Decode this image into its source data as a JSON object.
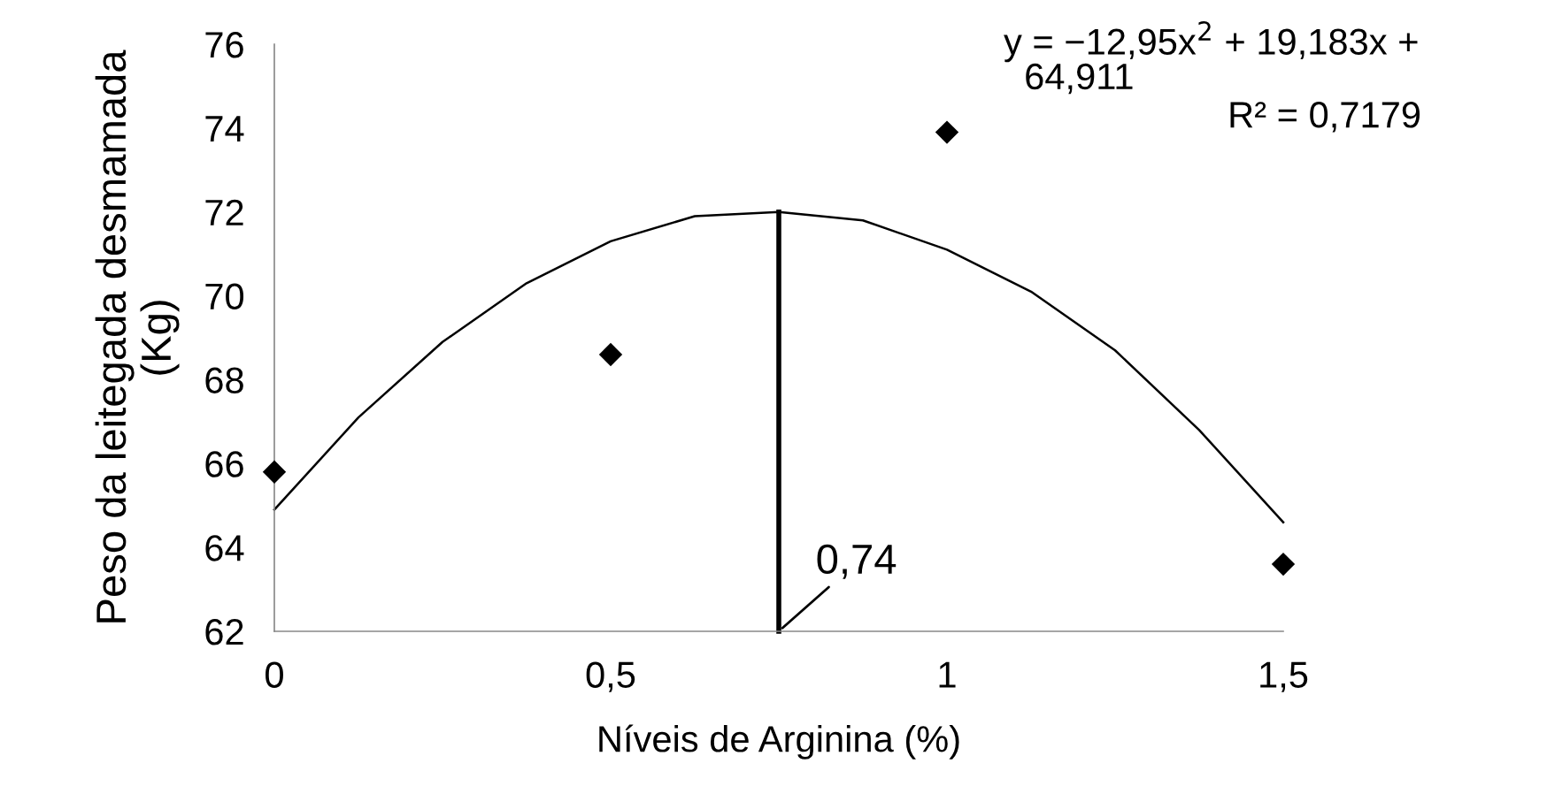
{
  "chart_data": {
    "type": "scatter",
    "xlabel": "Níveis de Arginina (%)",
    "ylabel": "Peso da leitegada desmamada\n(Kg)",
    "x": [
      0,
      0.5,
      1,
      1.5
    ],
    "series": [
      {
        "color": "#000000",
        "marker": "diamond",
        "values": [
          65.8,
          68.6,
          73.9,
          63.6
        ]
      },
      {
        "type": "line",
        "color": "#000000",
        "marker": "none",
        "x": [
          0,
          0.125,
          0.25,
          0.375,
          0.5,
          0.625,
          0.75,
          0.875,
          1,
          1.125,
          1.25,
          1.375,
          1.5
        ],
        "values": [
          64.9,
          67.1,
          68.9,
          70.3,
          71.3,
          71.9,
          72.0,
          71.8,
          71.1,
          70.1,
          68.7,
          66.8,
          64.6
        ]
      },
      {
        "type": "line",
        "color": "#000000",
        "marker": "none",
        "x": [
          0.75,
          0.75
        ],
        "values": [
          62,
          72.0
        ]
      }
    ],
    "annotations": [
      "y = −12,95x$^{2}$ + 19,183x +\n  64,911",
      "R² = 0,7179",
      {
        "text": "0,74",
        "x": 0.75,
        "y": 62
      }
    ],
    "xlim": [
      0,
      1.5
    ],
    "ylim": [
      62,
      76
    ],
    "xticks": [
      0,
      {
        "value": 0.5,
        "label": "0,5"
      },
      1,
      {
        "value": 1.5,
        "label": "1,5"
      }
    ],
    "yticks": [
      62,
      64,
      66,
      68,
      70,
      72,
      74,
      76
    ],
    "grid": false,
    "legend": false
  }
}
